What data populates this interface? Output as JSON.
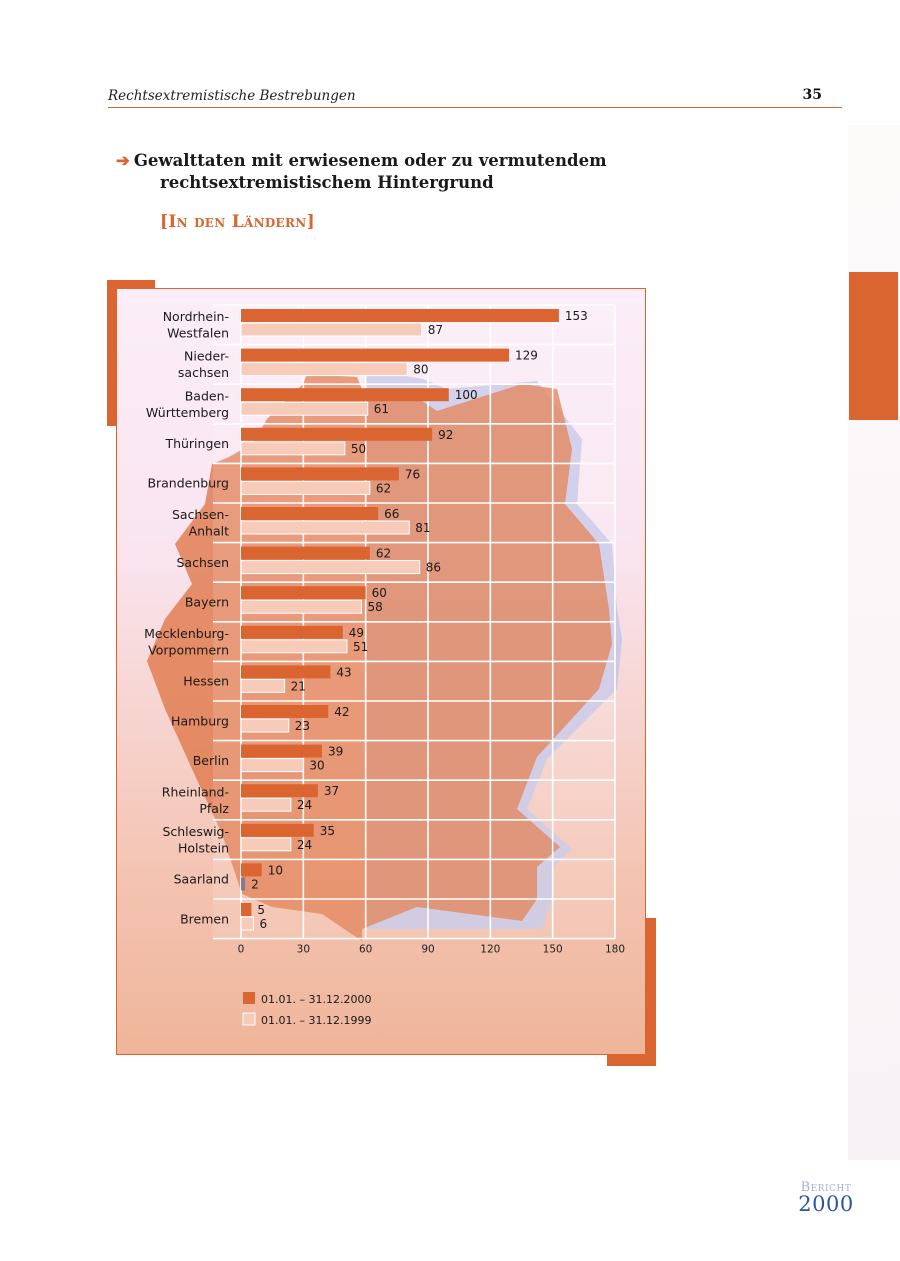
{
  "page": {
    "running_title": "Rechtsextremistische Bestrebungen",
    "page_number": "35",
    "heading_arrow": "➔",
    "heading_line1": "Gewalttaten mit erwiesenem oder zu vermutendem",
    "heading_line2": "rechtsextremistischem Hintergrund",
    "subheading_open": "[",
    "subheading_text": "In den Ländern",
    "subheading_close": "]",
    "footer_word": "Bericht",
    "footer_year": "2000"
  },
  "colors": {
    "accent": "#db6530",
    "bar_2000": "#db6530",
    "bar_1999": "#f7cbb9",
    "bar_1999_border": "#ffffff",
    "map_fill": "#e0784a",
    "map_shadow": "#c4c6e8"
  },
  "chart_data": {
    "type": "bar",
    "orientation": "horizontal",
    "categories": [
      [
        "Nordrhein-",
        "Westfalen"
      ],
      [
        "Nieder-",
        "sachsen"
      ],
      [
        "Baden-",
        "Württemberg"
      ],
      [
        "Thüringen"
      ],
      [
        "Brandenburg"
      ],
      [
        "Sachsen-",
        "Anhalt"
      ],
      [
        "Sachsen"
      ],
      [
        "Bayern"
      ],
      [
        "Mecklenburg-",
        "Vorpommern"
      ],
      [
        "Hessen"
      ],
      [
        "Hamburg"
      ],
      [
        "Berlin"
      ],
      [
        "Rheinland-",
        "Pfalz"
      ],
      [
        "Schleswig-",
        "Holstein"
      ],
      [
        "Saarland"
      ],
      [
        "Bremen"
      ]
    ],
    "series": [
      {
        "name": "01.01. – 31.12.2000",
        "values": [
          153,
          129,
          100,
          92,
          76,
          66,
          62,
          60,
          49,
          43,
          42,
          39,
          37,
          35,
          10,
          5
        ]
      },
      {
        "name": "01.01. – 31.12.1999",
        "values": [
          87,
          80,
          61,
          50,
          62,
          81,
          86,
          58,
          51,
          21,
          23,
          30,
          24,
          24,
          2,
          6
        ]
      }
    ],
    "xlim": [
      0,
      180
    ],
    "xticks": [
      0,
      30,
      60,
      90,
      120,
      150,
      180
    ],
    "grid": true,
    "legend": "bottom-left"
  }
}
